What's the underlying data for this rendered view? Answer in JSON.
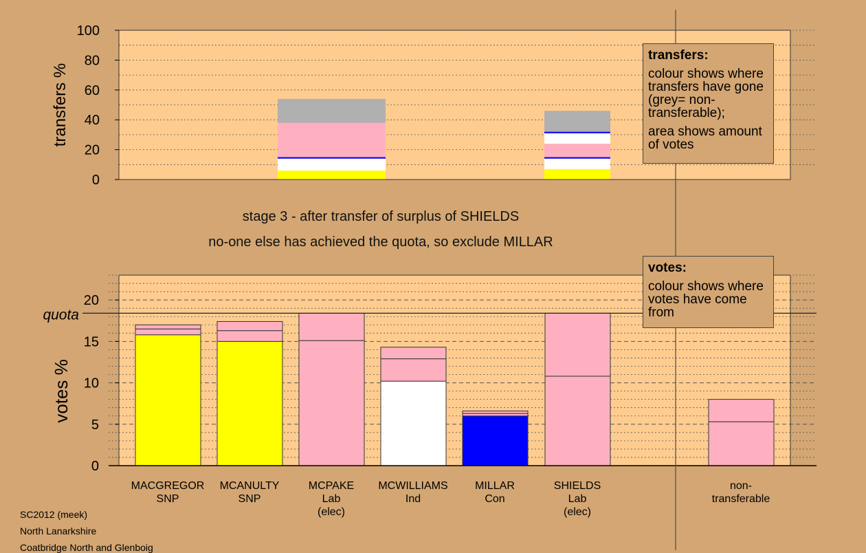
{
  "captions": {
    "stage": "stage 3 - after transfer of surplus of SHIELDS",
    "exclude": "no-one else has achieved the quota, so exclude MILLAR"
  },
  "legend_transfers": {
    "title": "transfers:",
    "text1": "colour shows where transfers have gone (grey= non-transferable);",
    "text2": "area shows amount of votes"
  },
  "legend_votes": {
    "title": "votes:",
    "text1": "colour shows where votes have come from"
  },
  "source": {
    "line1": "SC2012 (meek)",
    "line2": "North Lanarkshire",
    "line3": "Coatbridge North and Glenboig"
  },
  "colors": {
    "background": "#d3a673",
    "plot": "#ffcc90",
    "snp": "#ffff00",
    "lab": "#ffb0c0",
    "ind": "#ffffff",
    "con": "#0000ff",
    "nontransferable": "#b0b0b0"
  },
  "chart_data": [
    {
      "type": "bar",
      "stacked": true,
      "ylabel": "transfers %",
      "ylim": [
        0,
        100
      ],
      "yticks": [
        0,
        20,
        40,
        60,
        80,
        100
      ],
      "grid": true,
      "bars": [
        {
          "category": "MCPAKE",
          "segments": [
            {
              "color": "#ffff00",
              "value": 6
            },
            {
              "color": "#ffffff",
              "value": 8
            },
            {
              "color": "#0000ff",
              "value": 1
            },
            {
              "color": "#ffb0c0",
              "value": 23
            },
            {
              "color": "#b0b0b0",
              "value": 16
            }
          ]
        },
        {
          "category": "SHIELDS",
          "segments": [
            {
              "color": "#ffff00",
              "value": 7
            },
            {
              "color": "#ffffff",
              "value": 7
            },
            {
              "color": "#0000ff",
              "value": 1
            },
            {
              "color": "#ffb0c0",
              "value": 9
            },
            {
              "color": "#ffffff",
              "value": 7
            },
            {
              "color": "#0000ff",
              "value": 1
            },
            {
              "color": "#b0b0b0",
              "value": 14
            }
          ]
        }
      ]
    },
    {
      "type": "bar",
      "stacked": true,
      "ylabel": "votes %",
      "ylim": [
        0,
        23
      ],
      "yticks": [
        0,
        5,
        10,
        15,
        20
      ],
      "quota": 18.4,
      "quota_label": "quota",
      "grid": true,
      "bars": [
        {
          "name": "MACGREGOR",
          "party": "SNP",
          "note": "",
          "segments": [
            {
              "color": "#ffff00",
              "value": 15.8
            },
            {
              "color": "#ffb0c0",
              "value": 0.7
            },
            {
              "color": "#ffb0c0",
              "value": 0.5
            }
          ]
        },
        {
          "name": "MCANULTY",
          "party": "SNP",
          "note": "",
          "segments": [
            {
              "color": "#ffff00",
              "value": 15.0
            },
            {
              "color": "#ffb0c0",
              "value": 1.3
            },
            {
              "color": "#ffb0c0",
              "value": 1.1
            }
          ]
        },
        {
          "name": "MCPAKE",
          "party": "Lab",
          "note": "(elec)",
          "segments": [
            {
              "color": "#ffb0c0",
              "value": 15.1
            },
            {
              "color": "#ffb0c0",
              "value": 3.3
            }
          ]
        },
        {
          "name": "MCWILLIAMS",
          "party": "Ind",
          "note": "",
          "segments": [
            {
              "color": "#ffffff",
              "value": 10.2
            },
            {
              "color": "#ffb0c0",
              "value": 2.7
            },
            {
              "color": "#ffb0c0",
              "value": 1.4
            }
          ]
        },
        {
          "name": "MILLAR",
          "party": "Con",
          "note": "",
          "segments": [
            {
              "color": "#0000ff",
              "value": 6.0
            },
            {
              "color": "#ffb0c0",
              "value": 0.3
            },
            {
              "color": "#ffb0c0",
              "value": 0.3
            }
          ]
        },
        {
          "name": "SHIELDS",
          "party": "Lab",
          "note": "(elec)",
          "segments": [
            {
              "color": "#ffb0c0",
              "value": 10.8
            },
            {
              "color": "#ffb0c0",
              "value": 7.6
            }
          ]
        },
        {
          "name": "non-",
          "party": "transferable",
          "note": "",
          "segments": [
            {
              "color": "#ffb0c0",
              "value": 5.3
            },
            {
              "color": "#ffb0c0",
              "value": 2.7
            }
          ]
        }
      ]
    }
  ]
}
